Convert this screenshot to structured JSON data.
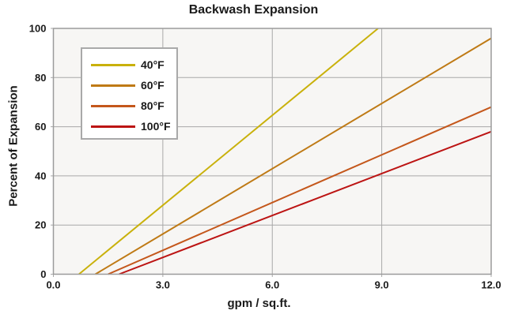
{
  "chart_data": {
    "type": "line",
    "title": "Backwash Expansion",
    "xlabel": "gpm / sq.ft.",
    "ylabel": "Percent of Expansion",
    "xlim": [
      0,
      12
    ],
    "ylim": [
      0,
      100
    ],
    "grid": true,
    "legend_position": "upper-left-inside",
    "xticks": {
      "values": [
        0,
        3,
        6,
        9,
        12
      ],
      "labels": [
        "0.0",
        "3.0",
        "6.0",
        "9.0",
        "12.0"
      ]
    },
    "yticks": {
      "values": [
        0,
        20,
        40,
        60,
        80,
        100
      ],
      "labels": [
        "0",
        "20",
        "40",
        "60",
        "80",
        "100"
      ]
    },
    "plot_background_color": "#f7f6f4",
    "grid_color": "#a8a8a8",
    "border_color": "#9b9b9b",
    "series": [
      {
        "name": "40°F",
        "color": "#c9b10b",
        "points": [
          [
            0.7,
            0
          ],
          [
            8.9,
            100
          ]
        ]
      },
      {
        "name": "60°F",
        "color": "#bf7a15",
        "points": [
          [
            1.15,
            0
          ],
          [
            12,
            96
          ]
        ]
      },
      {
        "name": "80°F",
        "color": "#c4571b",
        "points": [
          [
            1.5,
            0
          ],
          [
            12,
            68
          ]
        ]
      },
      {
        "name": "100°F",
        "color": "#bc1413",
        "points": [
          [
            1.8,
            0
          ],
          [
            12,
            58
          ]
        ]
      }
    ]
  }
}
